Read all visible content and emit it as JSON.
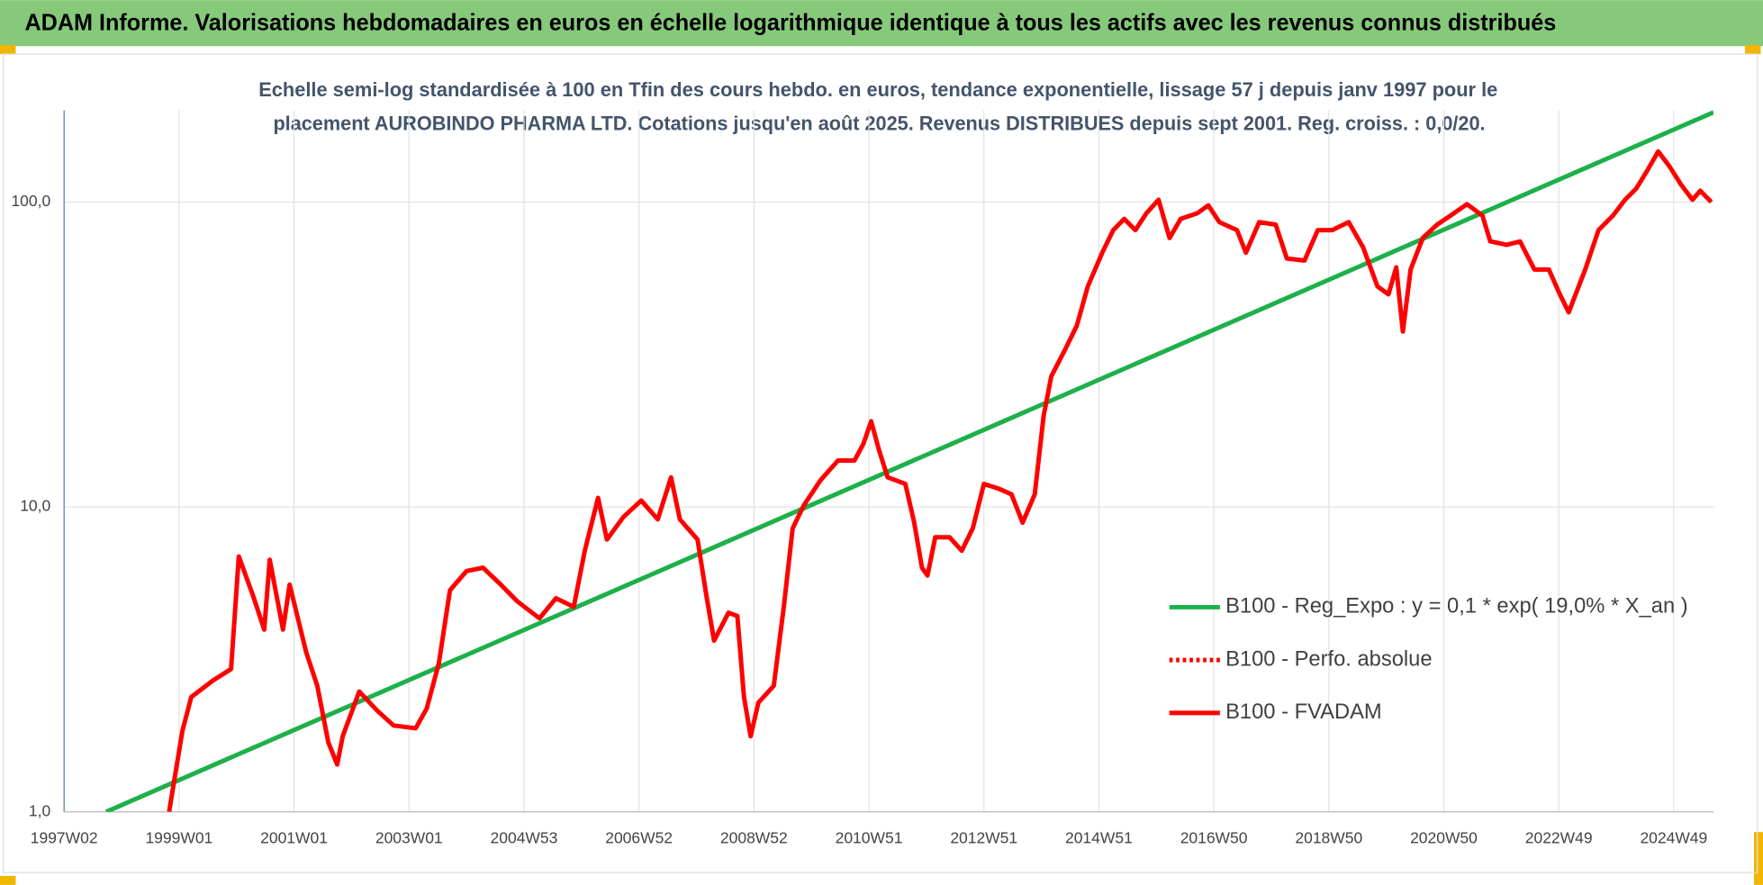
{
  "chart_data": {
    "type": "line",
    "title": "ADAM Informe. Valorisations hebdomadaires en euros en échelle logarithmique identique à tous les actifs avec les revenus connus distribués",
    "subtitle": [
      "Echelle semi-log standardisée à 100 en Tfin des cours hebdo. en euros, tendance exponentielle, lissage 57 j depuis janv 1997 pour le",
      "placement AUROBINDO PHARMA LTD. Cotations jusqu'en août 2025. Revenus DISTRIBUES depuis sept 2001. Reg. croiss. : 0,0/20."
    ],
    "log_y": true,
    "grid": true,
    "xlim": [
      0,
      1492
    ],
    "ylim": [
      1,
      200
    ],
    "xticks": [
      {
        "value": 0,
        "label": "1997W02"
      },
      {
        "value": 104,
        "label": "1999W01"
      },
      {
        "value": 208,
        "label": "2001W01"
      },
      {
        "value": 312,
        "label": "2003W01"
      },
      {
        "value": 416,
        "label": "2004W53"
      },
      {
        "value": 520,
        "label": "2006W52"
      },
      {
        "value": 624,
        "label": "2008W52"
      },
      {
        "value": 728,
        "label": "2010W51"
      },
      {
        "value": 832,
        "label": "2012W51"
      },
      {
        "value": 936,
        "label": "2014W51"
      },
      {
        "value": 1040,
        "label": "2016W50"
      },
      {
        "value": 1144,
        "label": "2018W50"
      },
      {
        "value": 1248,
        "label": "2020W50"
      },
      {
        "value": 1352,
        "label": "2022W49"
      },
      {
        "value": 1456,
        "label": "2024W49"
      }
    ],
    "yticks": [
      {
        "value": 1,
        "label": "1,0"
      },
      {
        "value": 10,
        "label": "10,0"
      },
      {
        "value": 100,
        "label": "100,0"
      }
    ],
    "series": [
      {
        "name": "B100 - Reg_Expo : y = 0,1 * exp( 19,0% *  X_an )",
        "color": "#1db04b",
        "x": [
          38,
          1492
        ],
        "values": [
          1.0,
          197
        ]
      },
      {
        "name": "B100 - Perfo. absolue",
        "color": "#ff0000",
        "dash": "dotted"
      },
      {
        "name": "B100 - FVADAM",
        "color": "#ff0000",
        "x": [
          95,
          107,
          115,
          135,
          151,
          158,
          171,
          181,
          186,
          198,
          204,
          219,
          229,
          239,
          247,
          252,
          267,
          283,
          298,
          318,
          328,
          339,
          349,
          364,
          379,
          395,
          410,
          430,
          445,
          461,
          471,
          483,
          491,
          506,
          522,
          537,
          549,
          557,
          573,
          581,
          588,
          601,
          609,
          615,
          621,
          628,
          642,
          651,
          659,
          669,
          684,
          700,
          715,
          723,
          730,
          737,
          745,
          761,
          769,
          776,
          781,
          788,
          801,
          812,
          822,
          832,
          845,
          857,
          867,
          878,
          886,
          893,
          906,
          916,
          926,
          939,
          949,
          959,
          969,
          979,
          990,
          1000,
          1010,
          1025,
          1035,
          1045,
          1061,
          1069,
          1081,
          1096,
          1106,
          1122,
          1134,
          1147,
          1162,
          1175,
          1188,
          1198,
          1205,
          1211,
          1218,
          1229,
          1242,
          1254,
          1269,
          1283,
          1290,
          1305,
          1317,
          1330,
          1343,
          1353,
          1361,
          1376,
          1388,
          1401,
          1412,
          1422,
          1432,
          1442,
          1452,
          1463,
          1473,
          1480,
          1490
        ],
        "values": [
          1.0,
          1.84,
          2.38,
          2.7,
          2.94,
          6.88,
          5.11,
          3.96,
          6.71,
          3.96,
          5.56,
          3.34,
          2.59,
          1.69,
          1.43,
          1.77,
          2.48,
          2.15,
          1.92,
          1.88,
          2.18,
          3.07,
          5.33,
          6.16,
          6.32,
          5.56,
          4.9,
          4.31,
          5.02,
          4.7,
          7.18,
          10.7,
          7.82,
          9.27,
          10.5,
          9.1,
          12.5,
          9.1,
          7.82,
          5.11,
          3.64,
          4.5,
          4.39,
          2.38,
          1.77,
          2.28,
          2.59,
          4.7,
          8.51,
          10.1,
          12.2,
          14.2,
          14.2,
          16.1,
          19.1,
          15.4,
          12.5,
          11.9,
          8.88,
          6.32,
          5.96,
          7.95,
          7.95,
          7.18,
          8.51,
          11.9,
          11.5,
          11.0,
          8.88,
          11.0,
          19.9,
          26.8,
          33.1,
          39.3,
          52.9,
          68.2,
          80.9,
          88.1,
          80.9,
          91.9,
          101.7,
          76.2,
          88.1,
          91.9,
          97.5,
          85.9,
          80.9,
          68.2,
          85.9,
          84.3,
          65.3,
          64.3,
          80.9,
          80.9,
          85.9,
          71.1,
          52.9,
          49.8,
          61.1,
          37.6,
          60.1,
          76.2,
          84.3,
          90.3,
          98.4,
          90.3,
          74.3,
          72.4,
          74.3,
          60.1,
          60.1,
          49.8,
          43.5,
          60.1,
          80.9,
          90.3,
          101.7,
          110.7,
          126.8,
          146.6,
          131.2,
          113.5,
          101.7,
          108.9,
          100
        ]
      }
    ]
  }
}
